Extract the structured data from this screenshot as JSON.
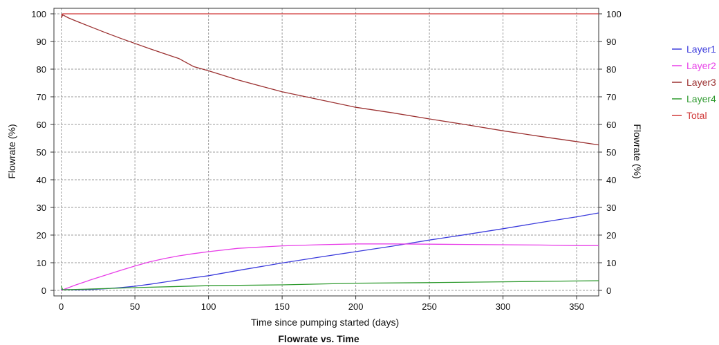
{
  "chart_data": {
    "type": "line",
    "title": "Flowrate vs. Time",
    "xlabel": "Time since pumping started (days)",
    "ylabel_left": "Flowrate (%)",
    "ylabel_right": "Flowrate (%)",
    "xlim": [
      -5,
      365
    ],
    "ylim": [
      -2,
      102
    ],
    "x_ticks": [
      0,
      50,
      100,
      150,
      200,
      250,
      300,
      350
    ],
    "y_ticks": [
      0,
      10,
      20,
      30,
      40,
      50,
      60,
      70,
      80,
      90,
      100
    ],
    "grid": true,
    "legend_position": "right",
    "series": [
      {
        "name": "Layer1",
        "color": "#3b3bdc",
        "points": [
          [
            0,
            0.3
          ],
          [
            10,
            0.2
          ],
          [
            20,
            0.3
          ],
          [
            30,
            0.6
          ],
          [
            40,
            1.0
          ],
          [
            50,
            1.5
          ],
          [
            60,
            2.2
          ],
          [
            70,
            3.0
          ],
          [
            80,
            3.8
          ],
          [
            90,
            4.6
          ],
          [
            100,
            5.3
          ],
          [
            120,
            7.2
          ],
          [
            150,
            9.9
          ],
          [
            175,
            12.0
          ],
          [
            200,
            14.0
          ],
          [
            225,
            16.0
          ],
          [
            250,
            18.2
          ],
          [
            275,
            20.2
          ],
          [
            300,
            22.3
          ],
          [
            325,
            24.5
          ],
          [
            350,
            26.6
          ],
          [
            365,
            28.0
          ]
        ]
      },
      {
        "name": "Layer2",
        "color": "#e83ee8",
        "points": [
          [
            0,
            0.0
          ],
          [
            5,
            1.0
          ],
          [
            10,
            2.0
          ],
          [
            20,
            3.8
          ],
          [
            30,
            5.5
          ],
          [
            40,
            7.2
          ],
          [
            50,
            8.8
          ],
          [
            60,
            10.3
          ],
          [
            70,
            11.5
          ],
          [
            80,
            12.5
          ],
          [
            90,
            13.3
          ],
          [
            100,
            14.0
          ],
          [
            120,
            15.2
          ],
          [
            150,
            16.1
          ],
          [
            175,
            16.5
          ],
          [
            200,
            16.8
          ],
          [
            225,
            16.8
          ],
          [
            250,
            16.7
          ],
          [
            275,
            16.6
          ],
          [
            300,
            16.5
          ],
          [
            325,
            16.4
          ],
          [
            350,
            16.2
          ],
          [
            365,
            16.2
          ]
        ]
      },
      {
        "name": "Layer3",
        "color": "#9b3030",
        "points": [
          [
            0,
            98.5
          ],
          [
            1,
            99.6
          ],
          [
            5,
            98.5
          ],
          [
            10,
            97.4
          ],
          [
            20,
            95.3
          ],
          [
            30,
            93.2
          ],
          [
            40,
            91.2
          ],
          [
            50,
            89.3
          ],
          [
            60,
            87.4
          ],
          [
            70,
            85.6
          ],
          [
            80,
            83.8
          ],
          [
            90,
            80.9
          ],
          [
            100,
            79.4
          ],
          [
            120,
            76.1
          ],
          [
            150,
            71.8
          ],
          [
            175,
            69.0
          ],
          [
            200,
            66.2
          ],
          [
            225,
            64.2
          ],
          [
            250,
            62.0
          ],
          [
            275,
            59.9
          ],
          [
            300,
            57.7
          ],
          [
            325,
            55.7
          ],
          [
            350,
            53.8
          ],
          [
            365,
            52.6
          ]
        ]
      },
      {
        "name": "Layer4",
        "color": "#2e9a2e",
        "points": [
          [
            0,
            1.5
          ],
          [
            1,
            0.2
          ],
          [
            20,
            0.5
          ],
          [
            50,
            1.0
          ],
          [
            100,
            1.7
          ],
          [
            150,
            2.0
          ],
          [
            200,
            2.6
          ],
          [
            250,
            2.8
          ],
          [
            300,
            3.1
          ],
          [
            350,
            3.4
          ],
          [
            365,
            3.5
          ]
        ]
      },
      {
        "name": "Total",
        "color": "#d03838",
        "points": [
          [
            0,
            99.5
          ],
          [
            1,
            100
          ],
          [
            365,
            100
          ]
        ]
      }
    ]
  }
}
